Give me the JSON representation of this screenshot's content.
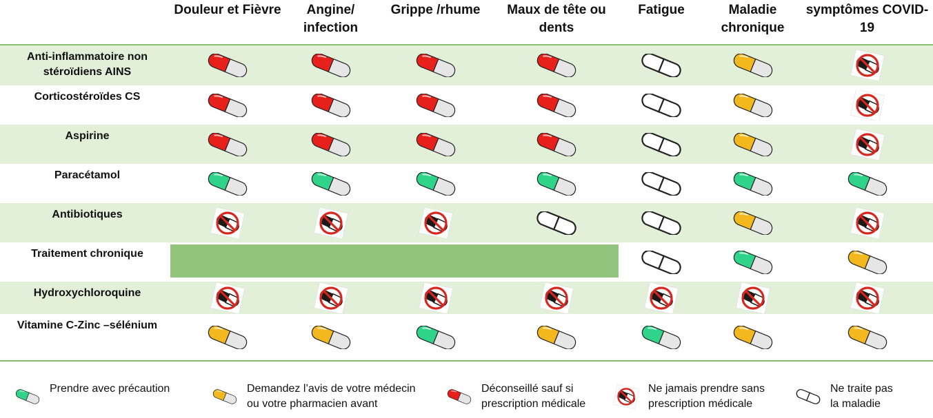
{
  "columns": [
    "Douleur et Fièvre",
    "Angine/ infection",
    "Grippe /rhume",
    "Maux de tête ou dents",
    "Fatigue",
    "Maladie chronique",
    "symptômes COVID-19"
  ],
  "rows": [
    {
      "label": "Anti-inflammatoire non stéroïdiens AINS",
      "cells": [
        "red",
        "red",
        "red",
        "red",
        "white",
        "yellow",
        "no"
      ]
    },
    {
      "label": "Corticostéroïdes CS",
      "cells": [
        "red",
        "red",
        "red",
        "red",
        "white",
        "yellow",
        "no"
      ]
    },
    {
      "label": "Aspirine",
      "cells": [
        "red",
        "red",
        "red",
        "red",
        "white",
        "yellow",
        "no"
      ]
    },
    {
      "label": "Paracétamol",
      "cells": [
        "green",
        "green",
        "green",
        "green",
        "white",
        "green",
        "green"
      ]
    },
    {
      "label": "Antibiotiques",
      "cells": [
        "no",
        "no",
        "no",
        "white",
        "white",
        "yellow",
        "no"
      ]
    },
    {
      "label": "Traitement chronique",
      "cells": [
        "span",
        "span",
        "span",
        "span",
        "white",
        "green",
        "yellow"
      ]
    },
    {
      "label": "Hydroxychloroquine",
      "cells": [
        "no",
        "no",
        "no",
        "no",
        "no",
        "no",
        "no"
      ]
    },
    {
      "label": "Vitamine C-Zinc –sélénium",
      "cells": [
        "yellow",
        "yellow",
        "green",
        "yellow",
        "green",
        "yellow",
        "yellow"
      ]
    }
  ],
  "legend": [
    {
      "icon": "green",
      "text1": "Prendre avec précaution",
      "text2": ""
    },
    {
      "icon": "yellow",
      "text1": "Demandez l’avis de votre médecin",
      "text2": "ou votre pharmacien avant"
    },
    {
      "icon": "red",
      "text1": "Déconseillé sauf si",
      "text2": "prescription médicale"
    },
    {
      "icon": "no",
      "text1": "Ne jamais prendre sans",
      "text2": "prescription médicale"
    },
    {
      "icon": "white",
      "text1": "Ne traite pas",
      "text2": "la maladie"
    }
  ],
  "colors": {
    "red": "#e8201c",
    "yellow": "#f2b81e",
    "green": "#2fd48a",
    "pill_back": "#e6e6e6",
    "row_alt": "#e2efd9",
    "bar": "#93c47d",
    "rule": "#8dbe6e",
    "prohibit": "#d7261e"
  }
}
